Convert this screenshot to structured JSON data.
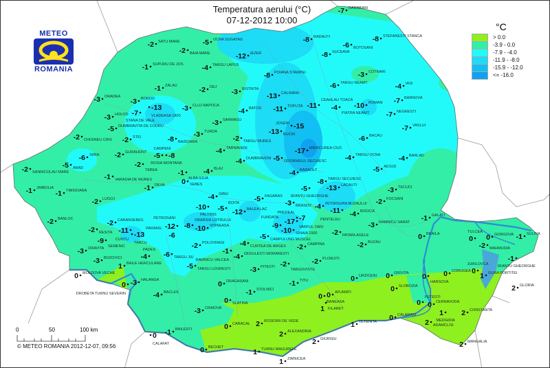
{
  "title": {
    "line1": "Temperatura aerului (°C)",
    "line2": "07-12-2012 10:00"
  },
  "logo": {
    "top": "METEO",
    "bottom": "ROMANIA"
  },
  "legend": {
    "unit": "°C",
    "items": [
      {
        "label": "> 0.0",
        "color": "#8ef01e"
      },
      {
        "label": "-3.9 - 0.0",
        "color": "#33eea6"
      },
      {
        "label": "-7.9 - -4.0",
        "color": "#22fafa"
      },
      {
        "label": "-11.9 - -8.0",
        "color": "#1cdcf6"
      },
      {
        "label": "-15.9 - -12.0",
        "color": "#12bff2"
      },
      {
        "label": "<= -16.0",
        "color": "#0ea2f0"
      }
    ]
  },
  "scale": {
    "ticks": [
      "0",
      "50",
      "100 km"
    ],
    "credit": "© METEO ROMANIA 2012-12-07, 09:56"
  },
  "stations": [
    {
      "name": "SATU MARE",
      "value": "-2"
    },
    {
      "name": "BAIA MARE",
      "value": "-2"
    },
    {
      "name": "OCNA SUGATAG",
      "value": "-5"
    },
    {
      "name": "IEZER",
      "value": "-12"
    },
    {
      "name": "RADAUTI",
      "value": "-8"
    },
    {
      "name": "DARABANI",
      "value": "-7"
    },
    {
      "name": "STEFANESTI STANCA",
      "value": "-8"
    },
    {
      "name": "BOTOSANI",
      "value": "-6"
    },
    {
      "name": "SUCEAVA",
      "value": "-8"
    },
    {
      "name": "SUPURU DE JOS",
      "value": "-1"
    },
    {
      "name": "TARGU LAPUS",
      "value": "-4"
    },
    {
      "name": "POIANA STAMPEI",
      "value": "-8"
    },
    {
      "name": "COTNARI",
      "value": "-3"
    },
    {
      "name": "IASI",
      "value": "-4"
    },
    {
      "name": "TARGU NEAMT",
      "value": "-6"
    },
    {
      "name": "ZALAU",
      "value": "-1"
    },
    {
      "name": "DEJ",
      "value": "-2"
    },
    {
      "name": "BISTRITA",
      "value": "-3"
    },
    {
      "name": "CALIMANI",
      "value": "-13"
    },
    {
      "name": "BARNOVA",
      "value": "-7"
    },
    {
      "name": "PIATRA NEAMT",
      "value": "-4"
    },
    {
      "name": "ROMAN",
      "value": "-10"
    },
    {
      "name": "CEAHLAU TOACA",
      "value": "-11"
    },
    {
      "name": "TOPLITA",
      "value": "-11"
    },
    {
      "name": "NEGRESTI",
      "value": "-7"
    },
    {
      "name": "ORADEA",
      "value": "-3"
    },
    {
      "name": "BOROD",
      "value": "-3"
    },
    {
      "name": "VLADEASA 1800",
      "value": "-13"
    },
    {
      "name": "HOLOD",
      "value": "-3"
    },
    {
      "name": "CLUJ-NAPOCA",
      "value": "-3"
    },
    {
      "name": "BATOS",
      "value": "-4"
    },
    {
      "name": "STANA DE VALE",
      "value": "-7"
    },
    {
      "name": "SARMASU",
      "value": "-3"
    },
    {
      "name": "CHISINEU CRIS",
      "value": "-2"
    },
    {
      "name": "DUMBRAVITA DE CODRU",
      "value": "-5"
    },
    {
      "name": "STEI",
      "value": "-2"
    },
    {
      "name": "BAISOARA",
      "value": "-8"
    },
    {
      "name": "TURDA",
      "value": "-3"
    },
    {
      "name": "TARGU MURES",
      "value": "-2"
    },
    {
      "name": "BUCIN",
      "value": "-13"
    },
    {
      "name": "JOSENI",
      "value": "-15"
    },
    {
      "name": "VASLUI",
      "value": "-7"
    },
    {
      "name": "BACAU",
      "value": "-6"
    },
    {
      "name": "SIRIA",
      "value": "-6"
    },
    {
      "name": "ARAD",
      "value": "-5"
    },
    {
      "name": "SANNICOLAU MARE",
      "value": "-2"
    },
    {
      "name": "GURAHONT",
      "value": "-2"
    },
    {
      "name": "CAMPENI",
      "value": "-5"
    },
    {
      "name": "ROSIA MONTANA",
      "value": "-8"
    },
    {
      "name": "TEBEA",
      "value": "-2"
    },
    {
      "name": "VARADIA DE MURES",
      "value": "-1"
    },
    {
      "name": "TARNAVENI",
      "value": "-4"
    },
    {
      "name": "ODORHEIUL SECUIESC",
      "value": "-5"
    },
    {
      "name": "MIERCUREA CIUC",
      "value": "-17"
    },
    {
      "name": "TARGU OCNA",
      "value": "-4"
    },
    {
      "name": "BARLAD",
      "value": "-4"
    },
    {
      "name": "DUMBRAVENI",
      "value": "-4"
    },
    {
      "name": "ALBA IULIA",
      "value": "-1"
    },
    {
      "name": "BLAJ",
      "value": "-4"
    },
    {
      "name": "SEBES",
      "value": "0"
    },
    {
      "name": "BARAOLT",
      "value": "-4"
    },
    {
      "name": "ADJUD",
      "value": "-5"
    },
    {
      "name": "TARGU SECUIESC",
      "value": "-8"
    },
    {
      "name": "SFANTU GHEORGHE",
      "value": "-5"
    },
    {
      "name": "JIMBOLIA",
      "value": "-1"
    },
    {
      "name": "TIMISOARA",
      "value": "-1"
    },
    {
      "name": "DEVA",
      "value": "-1"
    },
    {
      "name": "SIBIU",
      "value": "-4"
    },
    {
      "name": "FAGARAS",
      "value": "-5"
    },
    {
      "name": "LACAUTI",
      "value": "-13"
    },
    {
      "name": "TECUCI",
      "value": "-3"
    },
    {
      "name": "LUGOJ",
      "value": "-2"
    },
    {
      "name": "PALTINIS",
      "value": "-10"
    },
    {
      "name": "BOITA",
      "value": "-5"
    },
    {
      "name": "BALEA LAC",
      "value": "-12"
    },
    {
      "name": "BRASOV",
      "value": "-3"
    },
    {
      "name": "INTORSURA BUZAULUI",
      "value": "-4"
    },
    {
      "name": "PENTELEU",
      "value": "-11"
    },
    {
      "name": "FOCSANI",
      "value": "-2"
    },
    {
      "name": "BISOCA",
      "value": "-4"
    },
    {
      "name": "GALATI",
      "value": "-1"
    },
    {
      "name": "BANLOC",
      "value": "-2"
    },
    {
      "name": "CARANSEBES",
      "value": "-2"
    },
    {
      "name": "RESITA",
      "value": "-2"
    },
    {
      "name": "PETROSANI",
      "value": "-12"
    },
    {
      "name": "OBARSIA LOTRULUI",
      "value": "-8"
    },
    {
      "name": "PARANG",
      "value": "-6"
    },
    {
      "name": "VOINEASA",
      "value": "-10"
    },
    {
      "name": "VARFUL OMU",
      "value": "-17"
    },
    {
      "name": "PREDEAL",
      "value": "-7"
    },
    {
      "name": "FUNDATA",
      "value": "-9"
    },
    {
      "name": "SINAIA 1500",
      "value": "-10"
    },
    {
      "name": "CAMPULUNG MUSCEL",
      "value": "-5"
    },
    {
      "name": "CURTEA DE ARGES",
      "value": "-4"
    },
    {
      "name": "CUNTU",
      "value": "-11"
    },
    {
      "name": "TARCU",
      "value": "-13"
    },
    {
      "name": "SEMENIC",
      "value": "-9"
    },
    {
      "name": "PATARLAGELE",
      "value": "-2"
    },
    {
      "name": "CAMPINA",
      "value": "-2"
    },
    {
      "name": "BUZAU",
      "value": "-2"
    },
    {
      "name": "RAMNICU SARAT",
      "value": "-3"
    },
    {
      "name": "BRAILA",
      "value": "0"
    },
    {
      "name": "TULCEA",
      "value": "0"
    },
    {
      "name": "GORGOVA",
      "value": "0"
    },
    {
      "name": "MAHMUDIA",
      "value": "-2"
    },
    {
      "name": "SULINA",
      "value": "-1"
    },
    {
      "name": "SFANTU GHEORGHE",
      "value": "-1"
    },
    {
      "name": "ORAVITA",
      "value": "-3"
    },
    {
      "name": "BOZOVICI",
      "value": "-3"
    },
    {
      "name": "BAILE HERCULANE",
      "value": "1"
    },
    {
      "name": "PADES",
      "value": "-4"
    },
    {
      "name": "TARGU JIU",
      "value": "-6"
    },
    {
      "name": "POLOVRAGI",
      "value": "-2"
    },
    {
      "name": "RAMNICU VALCEA",
      "value": "-1"
    },
    {
      "name": "DEDULESTI MORARESTI",
      "value": "-4"
    },
    {
      "name": "TARGU LOGRESTI",
      "value": "-5"
    },
    {
      "name": "TARGOVISTE",
      "value": "-2"
    },
    {
      "name": "PLOIESTI",
      "value": "-2"
    },
    {
      "name": "PITESTI",
      "value": "-3"
    },
    {
      "name": "MOLDOVA VECHE",
      "value": "0"
    },
    {
      "name": "HALANGA",
      "value": "-3"
    },
    {
      "name": "DROBETA TURNU SEVERIN",
      "value": "0"
    },
    {
      "name": "DRAGASANI",
      "value": "0"
    },
    {
      "name": "URZICENI",
      "value": "0"
    },
    {
      "name": "GRIVITA",
      "value": "0"
    },
    {
      "name": "HARSOVA",
      "value": "0"
    },
    {
      "name": "CORUGEA",
      "value": "0"
    },
    {
      "name": "JURILOVCA",
      "value": "0"
    },
    {
      "name": "GURA PORTITEI",
      "value": "1"
    },
    {
      "name": "GLORIA",
      "value": "2"
    },
    {
      "name": "TITU",
      "value": "-1"
    },
    {
      "name": "STOLNICI",
      "value": "-1"
    },
    {
      "name": "BACLES",
      "value": "-4"
    },
    {
      "name": "SLOBOZIA",
      "value": "0"
    },
    {
      "name": "AFUMATI",
      "value": "0"
    },
    {
      "name": "BANEASA",
      "value": "0"
    },
    {
      "name": "FILARET",
      "value": "1"
    },
    {
      "name": "SLATINA",
      "value": "0"
    },
    {
      "name": "FETESTI",
      "value": "0"
    },
    {
      "name": "CERNAVODA",
      "value": "0"
    },
    {
      "name": "CRAIOVA",
      "value": "-3"
    },
    {
      "name": "MEDGIDIA",
      "value": "1"
    },
    {
      "name": "CONSTANTA",
      "value": "2"
    },
    {
      "name": "CARACAL",
      "value": "0"
    },
    {
      "name": "BAILESTI",
      "value": "-1"
    },
    {
      "name": "CALAFAT",
      "value": "0"
    },
    {
      "name": "ROSIORII DE VEDE",
      "value": "2"
    },
    {
      "name": "ALEXANDRIA",
      "value": "2"
    },
    {
      "name": "OLTENITA",
      "value": "1"
    },
    {
      "name": "CALARASI",
      "value": "0"
    },
    {
      "name": "ADAMCLISI",
      "value": "2"
    },
    {
      "name": "GIURGIU",
      "value": "2"
    },
    {
      "name": "MANGALIA",
      "value": "2"
    },
    {
      "name": "BECHET",
      "value": "0"
    },
    {
      "name": "TURNU MAGURELE",
      "value": "1"
    },
    {
      "name": "ZIMNICEA",
      "value": "1"
    }
  ]
}
